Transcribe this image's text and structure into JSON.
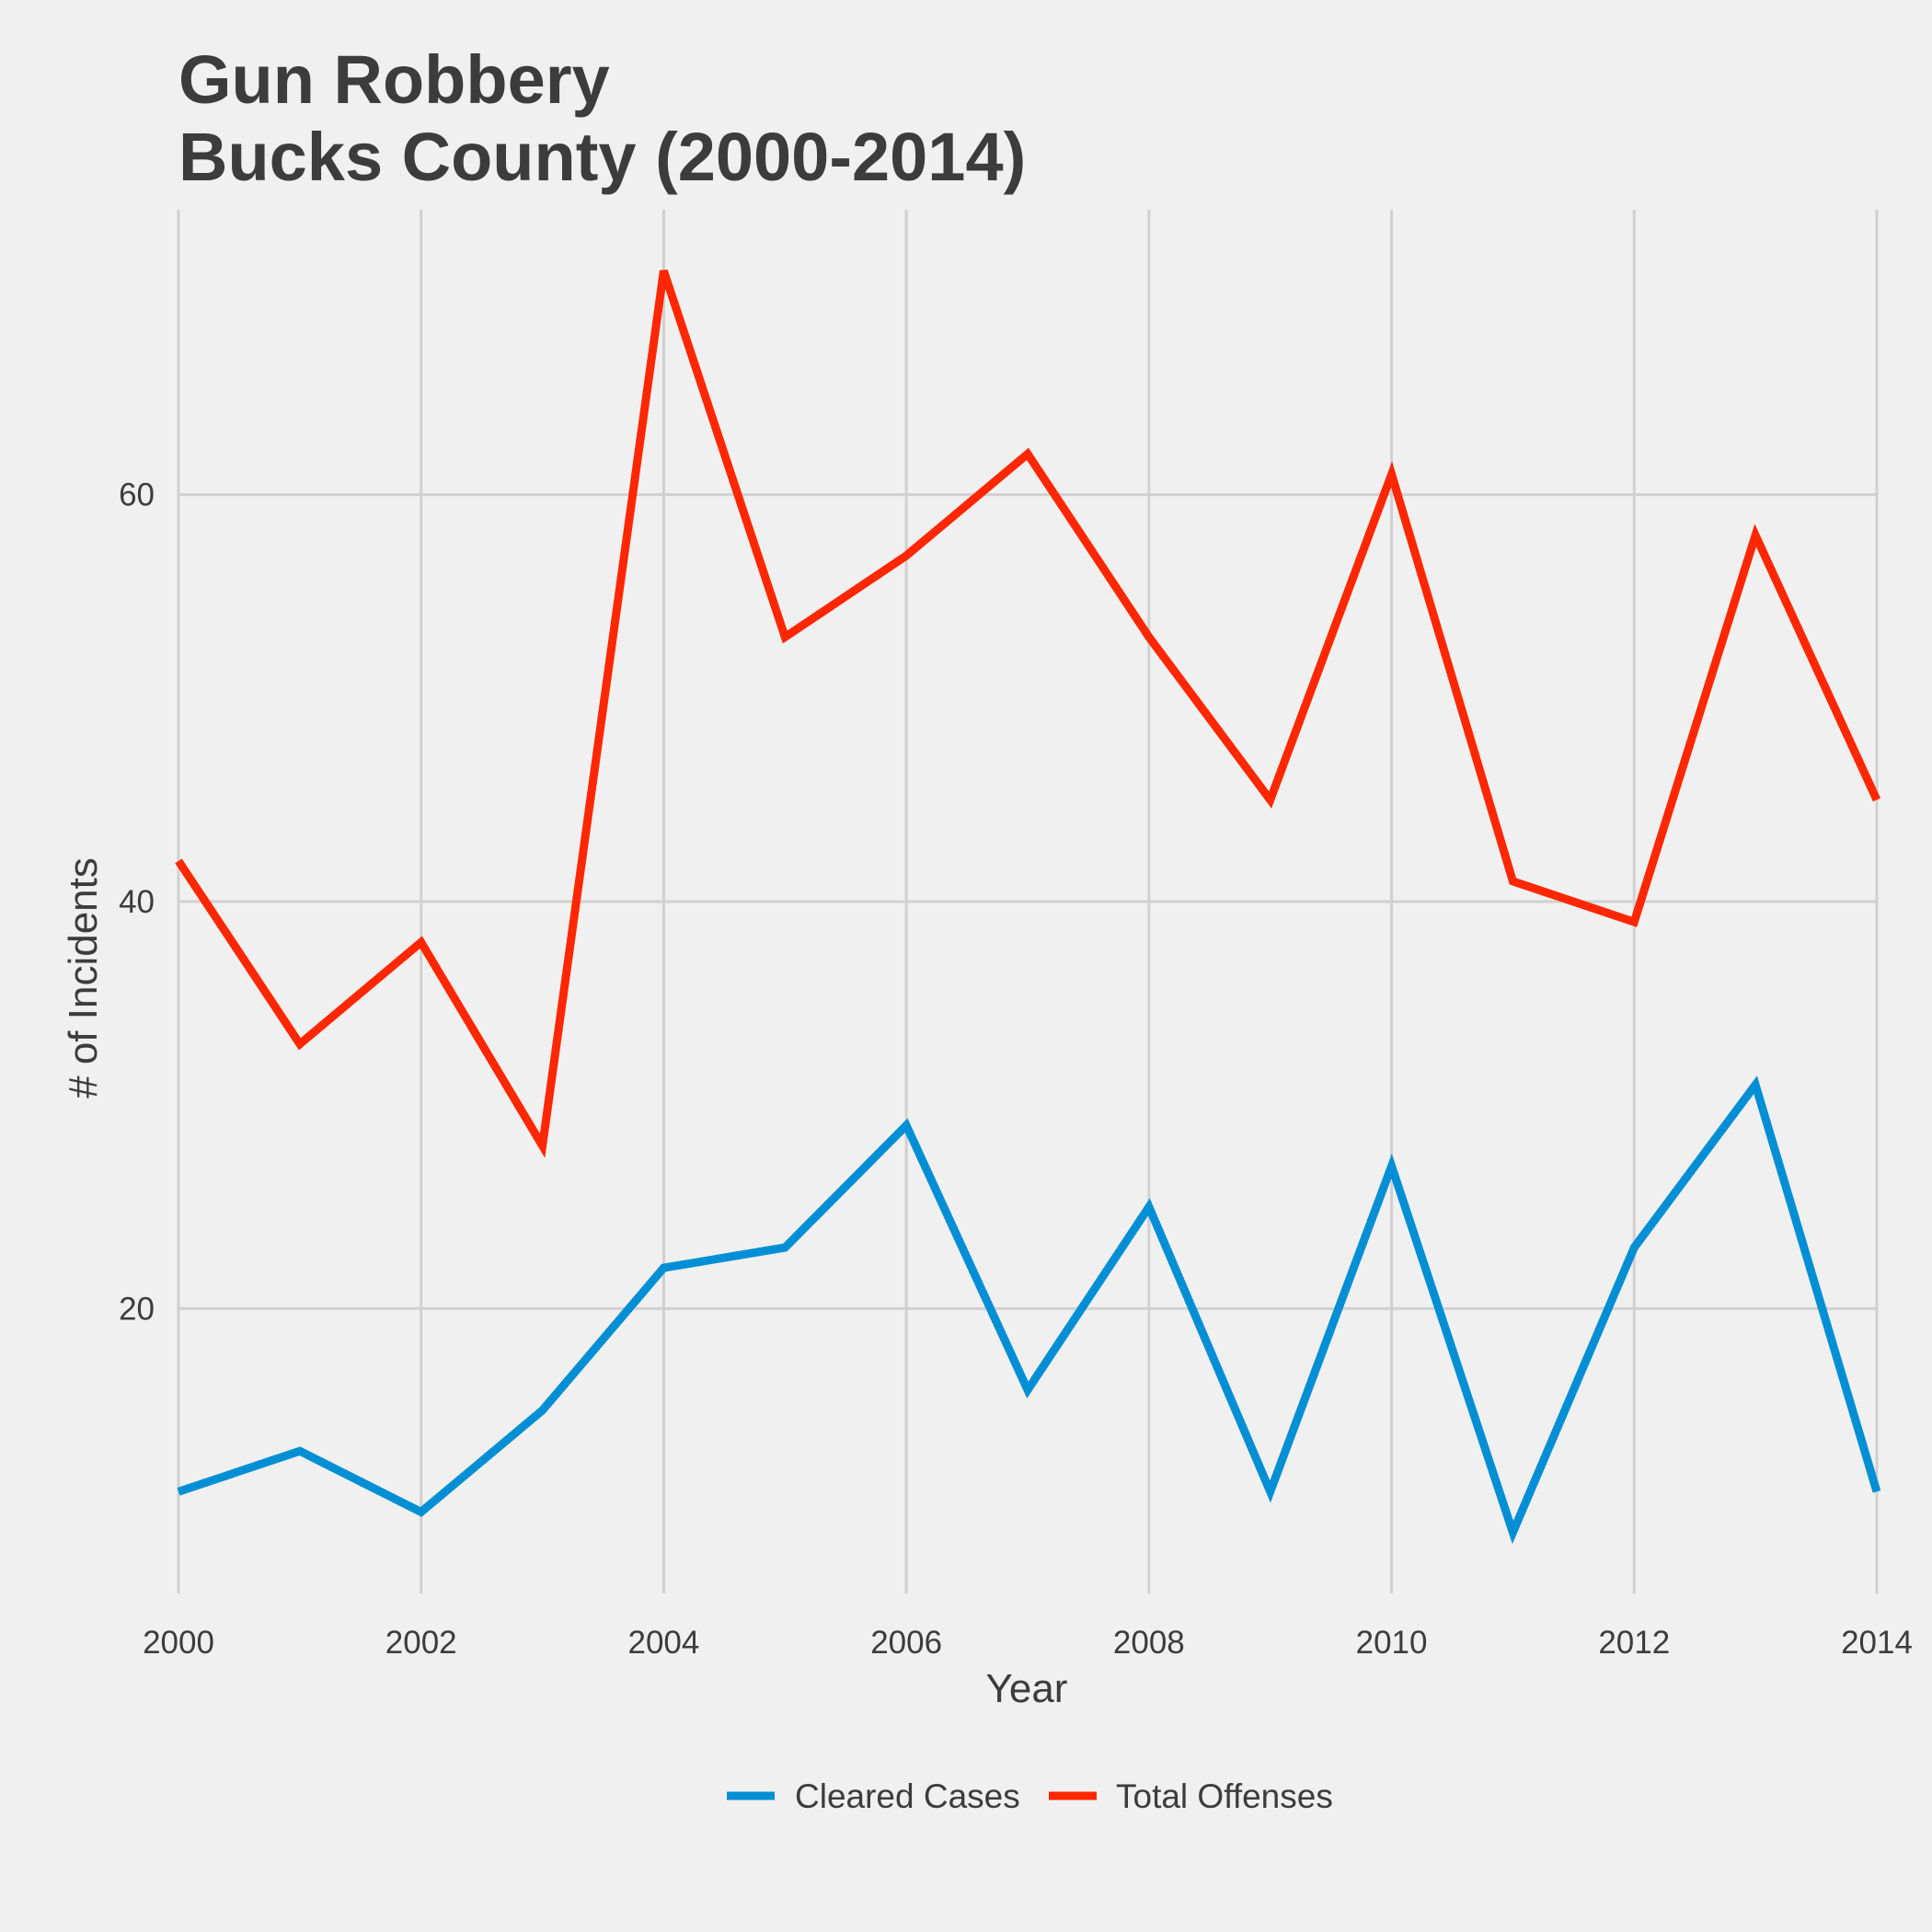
{
  "chart_data": {
    "type": "line",
    "title": [
      "Gun Robbery",
      "Bucks County (2000-2014)"
    ],
    "xlabel": "Year",
    "ylabel": "# of Incidents",
    "x": [
      2000,
      2001,
      2002,
      2003,
      2004,
      2005,
      2006,
      2007,
      2008,
      2009,
      2010,
      2011,
      2012,
      2013,
      2014
    ],
    "x_ticks": [
      "2000",
      "2002",
      "2004",
      "2006",
      "2008",
      "2010",
      "2012",
      "2014"
    ],
    "y_ticks": [
      "20",
      "40",
      "60"
    ],
    "xlim": [
      2000,
      2014
    ],
    "ylim": [
      6,
      74
    ],
    "grid": true,
    "legend_position": "bottom",
    "series": [
      {
        "name": "Cleared Cases",
        "color": "#008fd5",
        "values": [
          11,
          13,
          10,
          15,
          22,
          23,
          29,
          16,
          25,
          11,
          27,
          9,
          23,
          31,
          11
        ]
      },
      {
        "name": "Total Offenses",
        "color": "#ff2700",
        "values": [
          42,
          33,
          38,
          28,
          71,
          53,
          57,
          62,
          53,
          45,
          61,
          41,
          39,
          58,
          45
        ]
      }
    ]
  }
}
